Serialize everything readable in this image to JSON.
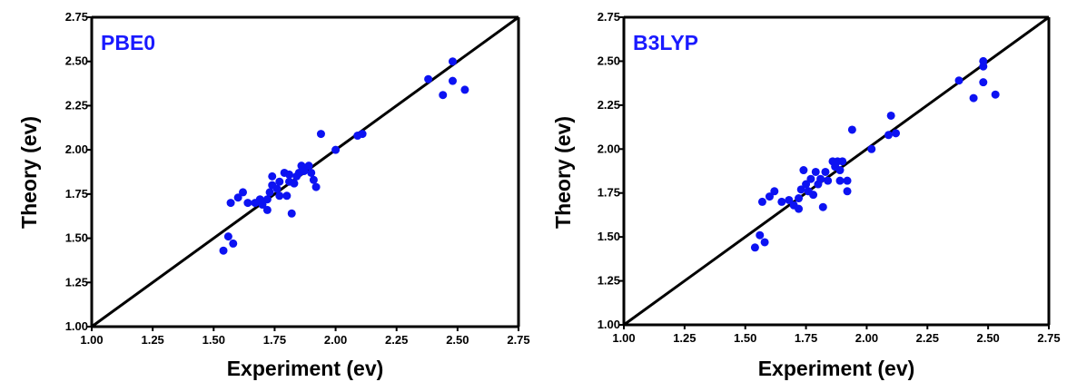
{
  "colors": {
    "points": "#0c12f2",
    "panel_title": "#1a1aff",
    "axes": "#000000",
    "background": "#ffffff"
  },
  "chart_data": [
    {
      "type": "scatter",
      "title": "PBE0",
      "xlabel": "Experiment (ev)",
      "ylabel": "Theory (ev)",
      "xlim": [
        1.0,
        2.75
      ],
      "ylim": [
        1.0,
        2.75
      ],
      "grid": false,
      "reference_line": {
        "from": [
          1.0,
          1.0
        ],
        "to": [
          2.75,
          2.75
        ]
      },
      "x_ticks": [
        "1.00",
        "1.25",
        "1.50",
        "1.75",
        "2.00",
        "2.25",
        "2.50",
        "2.75"
      ],
      "y_ticks": [
        "1.00",
        "1.25",
        "1.50",
        "1.75",
        "2.00",
        "2.25",
        "2.50",
        "2.75"
      ],
      "points": [
        {
          "x": 1.54,
          "y": 1.43
        },
        {
          "x": 1.56,
          "y": 1.51
        },
        {
          "x": 1.58,
          "y": 1.47
        },
        {
          "x": 1.57,
          "y": 1.7
        },
        {
          "x": 1.6,
          "y": 1.73
        },
        {
          "x": 1.62,
          "y": 1.76
        },
        {
          "x": 1.64,
          "y": 1.7
        },
        {
          "x": 1.67,
          "y": 1.7
        },
        {
          "x": 1.69,
          "y": 1.72
        },
        {
          "x": 1.7,
          "y": 1.69
        },
        {
          "x": 1.72,
          "y": 1.66
        },
        {
          "x": 1.72,
          "y": 1.72
        },
        {
          "x": 1.73,
          "y": 1.76
        },
        {
          "x": 1.74,
          "y": 1.8
        },
        {
          "x": 1.74,
          "y": 1.85
        },
        {
          "x": 1.76,
          "y": 1.78
        },
        {
          "x": 1.77,
          "y": 1.82
        },
        {
          "x": 1.77,
          "y": 1.74
        },
        {
          "x": 1.79,
          "y": 1.87
        },
        {
          "x": 1.8,
          "y": 1.74
        },
        {
          "x": 1.81,
          "y": 1.82
        },
        {
          "x": 1.81,
          "y": 1.86
        },
        {
          "x": 1.82,
          "y": 1.64
        },
        {
          "x": 1.83,
          "y": 1.81
        },
        {
          "x": 1.84,
          "y": 1.85
        },
        {
          "x": 1.85,
          "y": 1.87
        },
        {
          "x": 1.86,
          "y": 1.91
        },
        {
          "x": 1.87,
          "y": 1.88
        },
        {
          "x": 1.89,
          "y": 1.91
        },
        {
          "x": 1.9,
          "y": 1.87
        },
        {
          "x": 1.91,
          "y": 1.83
        },
        {
          "x": 1.92,
          "y": 1.79
        },
        {
          "x": 1.94,
          "y": 2.09
        },
        {
          "x": 2.0,
          "y": 2.0
        },
        {
          "x": 2.09,
          "y": 2.08
        },
        {
          "x": 2.11,
          "y": 2.09
        },
        {
          "x": 2.38,
          "y": 2.4
        },
        {
          "x": 2.44,
          "y": 2.31
        },
        {
          "x": 2.48,
          "y": 2.5
        },
        {
          "x": 2.48,
          "y": 2.39
        },
        {
          "x": 2.53,
          "y": 2.34
        }
      ]
    },
    {
      "type": "scatter",
      "title": "B3LYP",
      "xlabel": "Experiment (ev)",
      "ylabel": "Theory (ev)",
      "xlim": [
        1.0,
        2.75
      ],
      "ylim": [
        1.0,
        2.75
      ],
      "grid": false,
      "reference_line": {
        "from": [
          1.0,
          1.0
        ],
        "to": [
          2.75,
          2.75
        ]
      },
      "x_ticks": [
        "1.00",
        "1.25",
        "1.50",
        "1.75",
        "2.00",
        "2.25",
        "2.50",
        "2.75"
      ],
      "y_ticks": [
        "1.00",
        "1.25",
        "1.50",
        "1.75",
        "2.00",
        "2.25",
        "2.50",
        "2.75"
      ],
      "points": [
        {
          "x": 1.54,
          "y": 1.44
        },
        {
          "x": 1.56,
          "y": 1.51
        },
        {
          "x": 1.58,
          "y": 1.47
        },
        {
          "x": 1.57,
          "y": 1.7
        },
        {
          "x": 1.6,
          "y": 1.73
        },
        {
          "x": 1.62,
          "y": 1.76
        },
        {
          "x": 1.65,
          "y": 1.7
        },
        {
          "x": 1.68,
          "y": 1.71
        },
        {
          "x": 1.7,
          "y": 1.68
        },
        {
          "x": 1.72,
          "y": 1.66
        },
        {
          "x": 1.72,
          "y": 1.72
        },
        {
          "x": 1.73,
          "y": 1.77
        },
        {
          "x": 1.74,
          "y": 1.88
        },
        {
          "x": 1.75,
          "y": 1.8
        },
        {
          "x": 1.76,
          "y": 1.76
        },
        {
          "x": 1.77,
          "y": 1.83
        },
        {
          "x": 1.78,
          "y": 1.74
        },
        {
          "x": 1.79,
          "y": 1.87
        },
        {
          "x": 1.8,
          "y": 1.8
        },
        {
          "x": 1.81,
          "y": 1.83
        },
        {
          "x": 1.82,
          "y": 1.67
        },
        {
          "x": 1.83,
          "y": 1.87
        },
        {
          "x": 1.84,
          "y": 1.82
        },
        {
          "x": 1.86,
          "y": 1.93
        },
        {
          "x": 1.87,
          "y": 1.9
        },
        {
          "x": 1.88,
          "y": 1.93
        },
        {
          "x": 1.89,
          "y": 1.88
        },
        {
          "x": 1.89,
          "y": 1.82
        },
        {
          "x": 1.9,
          "y": 1.93
        },
        {
          "x": 1.92,
          "y": 1.76
        },
        {
          "x": 1.92,
          "y": 1.82
        },
        {
          "x": 1.94,
          "y": 2.11
        },
        {
          "x": 2.02,
          "y": 2.0
        },
        {
          "x": 2.09,
          "y": 2.08
        },
        {
          "x": 2.1,
          "y": 2.19
        },
        {
          "x": 2.12,
          "y": 2.09
        },
        {
          "x": 2.38,
          "y": 2.39
        },
        {
          "x": 2.44,
          "y": 2.29
        },
        {
          "x": 2.48,
          "y": 2.5
        },
        {
          "x": 2.48,
          "y": 2.47
        },
        {
          "x": 2.48,
          "y": 2.38
        },
        {
          "x": 2.53,
          "y": 2.31
        }
      ]
    }
  ]
}
